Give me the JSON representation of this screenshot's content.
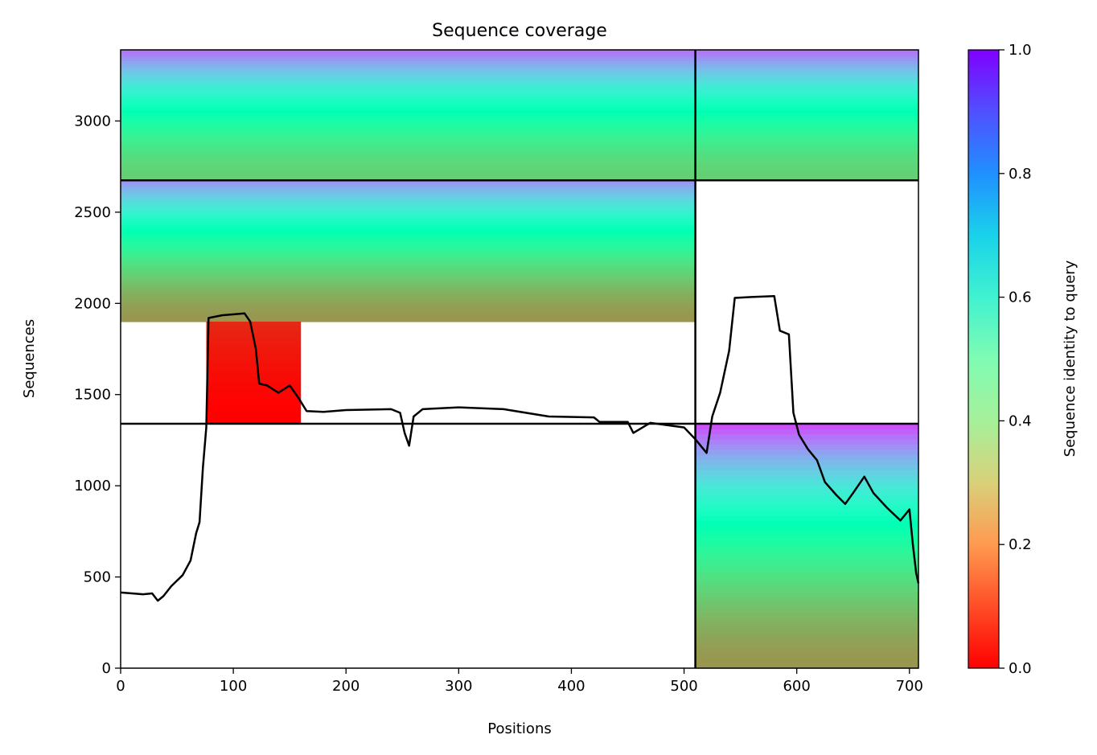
{
  "chart_data": {
    "type": "heatmap",
    "title": "Sequence coverage",
    "xlabel": "Positions",
    "ylabel": "Sequences",
    "xlim": [
      0,
      708
    ],
    "ylim": [
      0,
      3390
    ],
    "xticks": [
      0,
      100,
      200,
      300,
      400,
      500,
      600,
      700
    ],
    "yticks": [
      0,
      500,
      1000,
      1500,
      2000,
      2500,
      3000
    ],
    "colorbar": {
      "label": "Sequence identity to query",
      "range": [
        0.0,
        1.0
      ],
      "ticks": [
        "0.0",
        "0.2",
        "0.4",
        "0.6",
        "0.8",
        "1.0"
      ],
      "colormap": "rainbow_r"
    },
    "chain_boundary_position": 510,
    "group_boundaries_sequences": [
      2675,
      1340
    ],
    "coverage_line": {
      "color": "#000000",
      "points": [
        [
          0,
          415
        ],
        [
          10,
          410
        ],
        [
          20,
          405
        ],
        [
          28,
          410
        ],
        [
          33,
          370
        ],
        [
          38,
          395
        ],
        [
          45,
          450
        ],
        [
          55,
          510
        ],
        [
          62,
          590
        ],
        [
          67,
          740
        ],
        [
          70,
          800
        ],
        [
          73,
          1100
        ],
        [
          76,
          1320
        ],
        [
          78,
          1920
        ],
        [
          90,
          1935
        ],
        [
          110,
          1945
        ],
        [
          115,
          1900
        ],
        [
          120,
          1750
        ],
        [
          123,
          1560
        ],
        [
          130,
          1550
        ],
        [
          140,
          1510
        ],
        [
          150,
          1550
        ],
        [
          158,
          1480
        ],
        [
          165,
          1410
        ],
        [
          180,
          1405
        ],
        [
          200,
          1415
        ],
        [
          240,
          1420
        ],
        [
          248,
          1400
        ],
        [
          252,
          1290
        ],
        [
          256,
          1220
        ],
        [
          260,
          1380
        ],
        [
          268,
          1420
        ],
        [
          300,
          1430
        ],
        [
          340,
          1420
        ],
        [
          380,
          1380
        ],
        [
          420,
          1375
        ],
        [
          425,
          1350
        ],
        [
          450,
          1350
        ],
        [
          455,
          1290
        ],
        [
          470,
          1345
        ],
        [
          500,
          1320
        ],
        [
          510,
          1255
        ],
        [
          520,
          1180
        ],
        [
          525,
          1380
        ],
        [
          532,
          1510
        ],
        [
          540,
          1740
        ],
        [
          545,
          2030
        ],
        [
          560,
          2035
        ],
        [
          580,
          2040
        ],
        [
          585,
          1850
        ],
        [
          593,
          1830
        ],
        [
          597,
          1400
        ],
        [
          602,
          1280
        ],
        [
          610,
          1200
        ],
        [
          618,
          1140
        ],
        [
          625,
          1020
        ],
        [
          635,
          950
        ],
        [
          643,
          900
        ],
        [
          650,
          960
        ],
        [
          660,
          1050
        ],
        [
          668,
          960
        ],
        [
          680,
          880
        ],
        [
          692,
          810
        ],
        [
          700,
          870
        ],
        [
          703,
          680
        ],
        [
          706,
          520
        ],
        [
          708,
          465
        ]
      ]
    },
    "coverage_blocks": [
      {
        "x": [
          0,
          510
        ],
        "y": [
          2675,
          3390
        ],
        "identity": [
          0.3,
          0.85
        ],
        "group": "A"
      },
      {
        "x": [
          510,
          708
        ],
        "y": [
          2675,
          3390
        ],
        "identity": [
          0.3,
          0.85
        ],
        "group": "A"
      },
      {
        "x": [
          0,
          510
        ],
        "y": [
          1900,
          2675
        ],
        "identity": [
          0.2,
          0.8
        ],
        "group": "B"
      },
      {
        "x": [
          76,
          160
        ],
        "y": [
          1340,
          1900
        ],
        "identity": [
          0.0,
          0.05
        ],
        "group": "B"
      },
      {
        "x": [
          510,
          708
        ],
        "y": [
          0,
          1340
        ],
        "identity": [
          0.2,
          0.9
        ],
        "group": "C"
      }
    ]
  }
}
